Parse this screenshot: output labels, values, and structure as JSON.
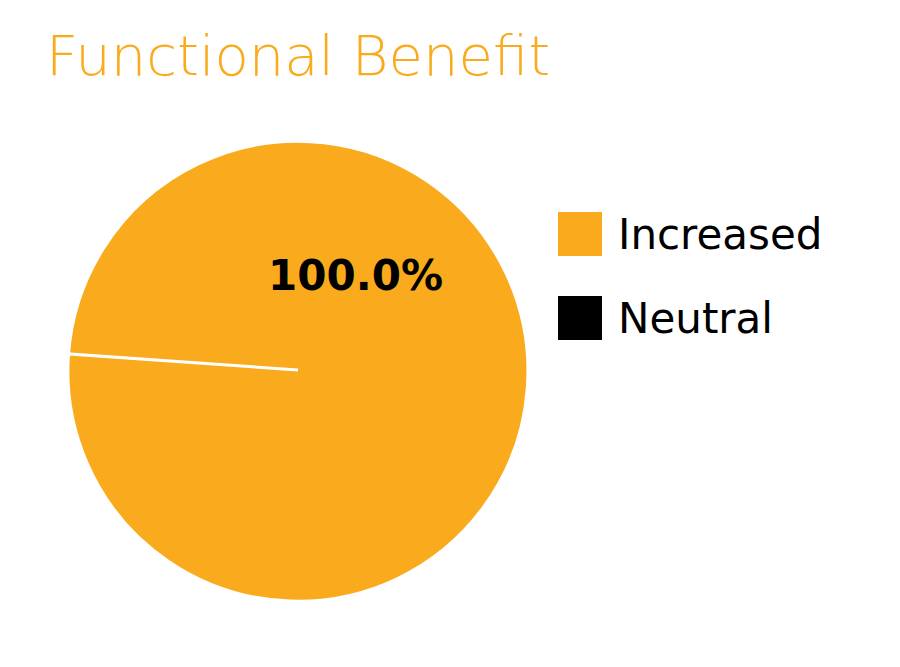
{
  "chart_data": {
    "type": "pie",
    "title": "Functional Benefit",
    "categories": [
      "Increased",
      "Neutral"
    ],
    "values": [
      100,
      0
    ],
    "colors": [
      "#f9ab1d",
      "#000000"
    ],
    "value_labels": [
      "100.0%",
      null
    ],
    "data_labels": true,
    "legend": "right"
  }
}
